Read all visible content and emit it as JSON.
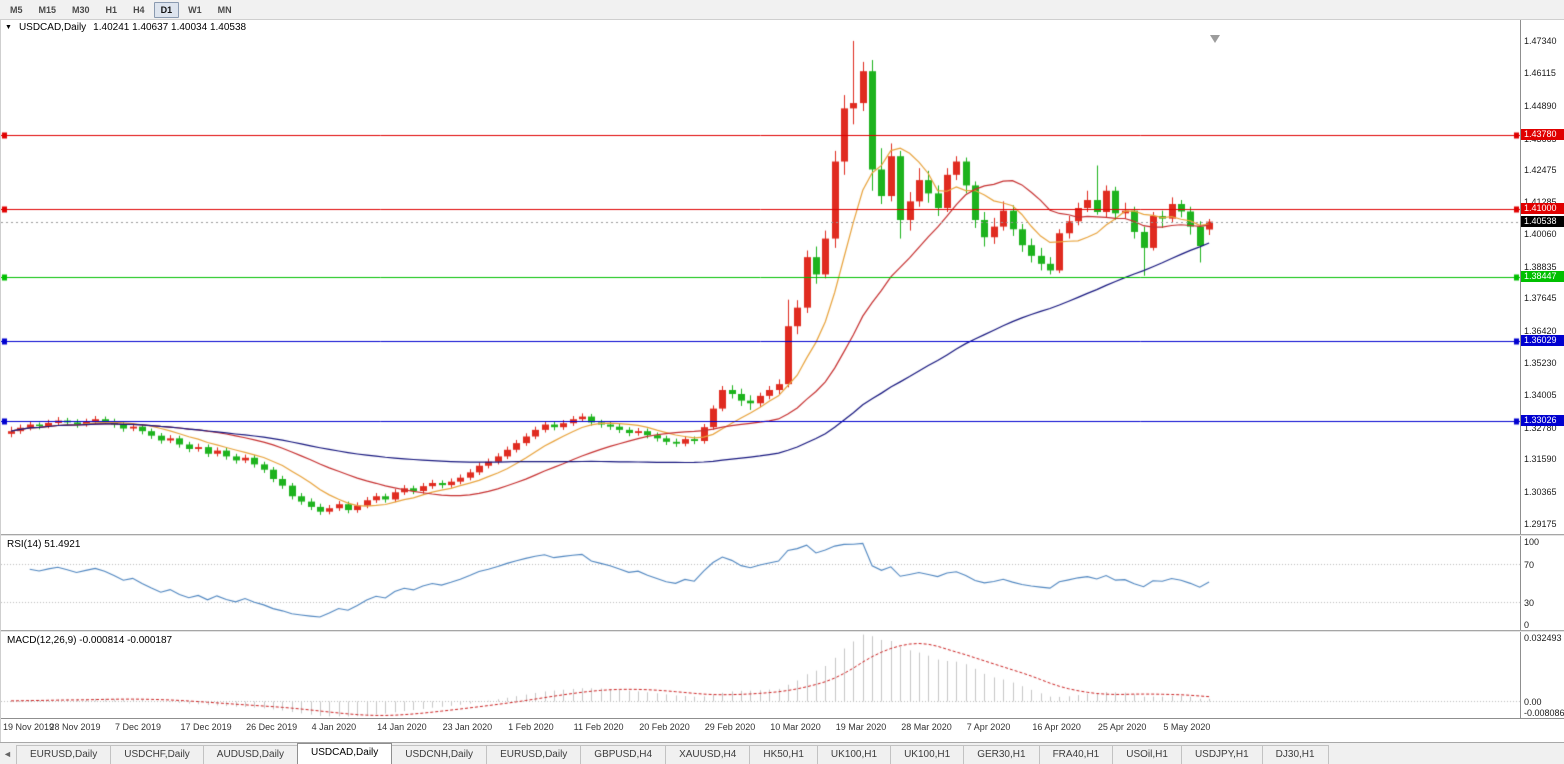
{
  "icons": {
    "dropdown": "▼",
    "tab_scroll_left": "◄"
  },
  "toolbar": {
    "timeframes": [
      "M5",
      "M15",
      "M30",
      "H1",
      "H4",
      "D1",
      "W1",
      "MN"
    ],
    "active": "D1"
  },
  "chart_header": {
    "symbol": "USDCAD,Daily",
    "ohlc": "1.40241 1.40637 1.40034 1.40538"
  },
  "price_axis": {
    "ticks": [
      1.4734,
      1.46115,
      1.4489,
      1.43665,
      1.42475,
      1.41285,
      1.4006,
      1.38835,
      1.37645,
      1.3642,
      1.3523,
      1.34005,
      1.3278,
      1.3159,
      1.30365,
      1.29175
    ]
  },
  "panes": {
    "rsi": {
      "label": "RSI(14) 51.4921",
      "levels": [
        100,
        70,
        30,
        0
      ]
    },
    "macd": {
      "label": "MACD(12,26,9) -0.000814 -0.000187",
      "axis_labels": [
        "0.032493",
        "0.00",
        "-0.008086"
      ]
    }
  },
  "tabs": {
    "items": [
      "EURUSD,Daily",
      "USDCHF,Daily",
      "AUDUSD,Daily",
      "USDCAD,Daily",
      "USDCNH,Daily",
      "EURUSD,Daily",
      "GBPUSD,H4",
      "XAUUSD,H4",
      "HK50,H1",
      "UK100,H1",
      "UK100,H1",
      "GER30,H1",
      "FRA40,H1",
      "USOil,H1",
      "USDJPY,H1",
      "DJ30,H1"
    ],
    "active_index": 3
  },
  "chart_data": {
    "type": "candlestick",
    "title": "USDCAD,Daily",
    "ylim": [
      1.2878,
      1.476
    ],
    "up_color": "#e02b20",
    "down_color": "#1db31d",
    "x_label_every": 7,
    "x_labels": [
      "19 Nov 2019",
      "28 Nov 2019",
      "7 Dec 2019",
      "17 Dec 2019",
      "26 Dec 2019",
      "4 Jan 2020",
      "14 Jan 2020",
      "23 Jan 2020",
      "1 Feb 2020",
      "11 Feb 2020",
      "20 Feb 2020",
      "29 Feb 2020",
      "10 Mar 2020",
      "19 Mar 2020",
      "28 Mar 2020",
      "7 Apr 2020",
      "16 Apr 2020",
      "25 Apr 2020",
      "5 May 2020"
    ],
    "hlines": [
      {
        "price": 1.4378,
        "color": "#e00000",
        "style": "solid"
      },
      {
        "price": 1.41,
        "color": "#e00000",
        "style": "solid"
      },
      {
        "price": 1.40538,
        "color": "#000000",
        "style": "current"
      },
      {
        "price": 1.38447,
        "color": "#00c000",
        "style": "solid"
      },
      {
        "price": 1.36029,
        "color": "#0000d0",
        "style": "solid"
      },
      {
        "price": 1.33026,
        "color": "#0000d0",
        "style": "solid"
      }
    ],
    "moving_averages": [
      {
        "period": 8,
        "color": "#e8a33c"
      },
      {
        "period": 20,
        "color": "#c62f2f"
      },
      {
        "period": 55,
        "color": "#15157e"
      }
    ],
    "subpanes": [
      {
        "type": "rsi",
        "period": 14,
        "current": 51.4921,
        "color": "#4f86c0",
        "levels": [
          100,
          70,
          30,
          0
        ]
      },
      {
        "type": "macd",
        "params": [
          12,
          26,
          9
        ],
        "current": [
          -0.000814,
          -0.000187
        ],
        "hist_color": "#c6c6c6",
        "signal_color": "#cc2222",
        "scale": [
          -0.008086,
          0.032493
        ]
      }
    ],
    "ohlc": [
      [
        1.3255,
        1.3282,
        1.3242,
        1.3265
      ],
      [
        1.3265,
        1.329,
        1.3255,
        1.3278
      ],
      [
        1.3278,
        1.3302,
        1.3268,
        1.329
      ],
      [
        1.329,
        1.3298,
        1.3272,
        1.3284
      ],
      [
        1.3284,
        1.3308,
        1.3276,
        1.3296
      ],
      [
        1.3296,
        1.3318,
        1.3288,
        1.3305
      ],
      [
        1.3305,
        1.3315,
        1.3286,
        1.3298
      ],
      [
        1.3298,
        1.331,
        1.3278,
        1.329
      ],
      [
        1.329,
        1.3312,
        1.3282,
        1.33
      ],
      [
        1.33,
        1.3322,
        1.3292,
        1.331
      ],
      [
        1.331,
        1.332,
        1.3292,
        1.3302
      ],
      [
        1.3302,
        1.3312,
        1.3278,
        1.329
      ],
      [
        1.329,
        1.33,
        1.3263,
        1.3275
      ],
      [
        1.3275,
        1.3295,
        1.3265,
        1.3282
      ],
      [
        1.3282,
        1.3292,
        1.3253,
        1.3265
      ],
      [
        1.3265,
        1.3275,
        1.3236,
        1.3248
      ],
      [
        1.3248,
        1.3258,
        1.3218,
        1.323
      ],
      [
        1.323,
        1.325,
        1.322,
        1.3238
      ],
      [
        1.3238,
        1.3248,
        1.3203,
        1.3215
      ],
      [
        1.3215,
        1.3225,
        1.3186,
        1.3198
      ],
      [
        1.3198,
        1.3218,
        1.3188,
        1.3205
      ],
      [
        1.3205,
        1.3215,
        1.3168,
        1.318
      ],
      [
        1.318,
        1.3204,
        1.317,
        1.3192
      ],
      [
        1.3192,
        1.3202,
        1.3158,
        1.317
      ],
      [
        1.317,
        1.318,
        1.3143,
        1.3155
      ],
      [
        1.3155,
        1.3177,
        1.3145,
        1.3165
      ],
      [
        1.3165,
        1.3175,
        1.3128,
        1.314
      ],
      [
        1.314,
        1.315,
        1.3108,
        1.312
      ],
      [
        1.312,
        1.313,
        1.3073,
        1.3085
      ],
      [
        1.3085,
        1.3097,
        1.3048,
        1.306
      ],
      [
        1.306,
        1.307,
        1.3008,
        1.302
      ],
      [
        1.302,
        1.3032,
        1.2988,
        1.3
      ],
      [
        1.3,
        1.3012,
        1.2968,
        1.298
      ],
      [
        1.298,
        1.2992,
        1.295,
        1.2962
      ],
      [
        1.2962,
        1.2987,
        1.2952,
        1.2975
      ],
      [
        1.2975,
        1.3002,
        1.2965,
        1.299
      ],
      [
        1.299,
        1.3,
        1.2956,
        1.2968
      ],
      [
        1.2968,
        1.2997,
        1.2958,
        1.2985
      ],
      [
        1.2985,
        1.3017,
        1.2975,
        1.3005
      ],
      [
        1.3005,
        1.3032,
        1.2995,
        1.302
      ],
      [
        1.302,
        1.303,
        1.2996,
        1.3008
      ],
      [
        1.3008,
        1.3047,
        1.2998,
        1.3035
      ],
      [
        1.3035,
        1.3062,
        1.3025,
        1.305
      ],
      [
        1.305,
        1.306,
        1.3028,
        1.304
      ],
      [
        1.304,
        1.307,
        1.303,
        1.3058
      ],
      [
        1.3058,
        1.3082,
        1.3048,
        1.307
      ],
      [
        1.307,
        1.308,
        1.305,
        1.3062
      ],
      [
        1.3062,
        1.3087,
        1.3052,
        1.3075
      ],
      [
        1.3075,
        1.3102,
        1.3065,
        1.309
      ],
      [
        1.309,
        1.3122,
        1.308,
        1.311
      ],
      [
        1.311,
        1.3147,
        1.31,
        1.3135
      ],
      [
        1.3135,
        1.3162,
        1.3125,
        1.315
      ],
      [
        1.315,
        1.3182,
        1.314,
        1.317
      ],
      [
        1.317,
        1.3207,
        1.316,
        1.3195
      ],
      [
        1.3195,
        1.3232,
        1.3185,
        1.322
      ],
      [
        1.322,
        1.3257,
        1.321,
        1.3245
      ],
      [
        1.3245,
        1.3282,
        1.3235,
        1.327
      ],
      [
        1.327,
        1.3302,
        1.326,
        1.329
      ],
      [
        1.329,
        1.33,
        1.3268,
        1.328
      ],
      [
        1.328,
        1.3307,
        1.327,
        1.3295
      ],
      [
        1.3295,
        1.3322,
        1.3285,
        1.331
      ],
      [
        1.331,
        1.3332,
        1.33,
        1.332
      ],
      [
        1.332,
        1.333,
        1.3286,
        1.3298
      ],
      [
        1.3298,
        1.3308,
        1.3278,
        1.329
      ],
      [
        1.329,
        1.33,
        1.327,
        1.3282
      ],
      [
        1.3282,
        1.3292,
        1.3258,
        1.327
      ],
      [
        1.327,
        1.328,
        1.3246,
        1.3258
      ],
      [
        1.3258,
        1.3277,
        1.3248,
        1.3265
      ],
      [
        1.3265,
        1.3275,
        1.3238,
        1.325
      ],
      [
        1.325,
        1.326,
        1.3226,
        1.3238
      ],
      [
        1.3238,
        1.3248,
        1.3213,
        1.3225
      ],
      [
        1.3225,
        1.3237,
        1.3206,
        1.3218
      ],
      [
        1.3218,
        1.3247,
        1.3208,
        1.3235
      ],
      [
        1.3235,
        1.3245,
        1.3216,
        1.3228
      ],
      [
        1.3228,
        1.3292,
        1.3218,
        1.328
      ],
      [
        1.328,
        1.3362,
        1.327,
        1.335
      ],
      [
        1.335,
        1.3435,
        1.334,
        1.342
      ],
      [
        1.342,
        1.3438,
        1.3388,
        1.3405
      ],
      [
        1.3405,
        1.3425,
        1.336,
        1.338
      ],
      [
        1.338,
        1.34,
        1.3345,
        1.337
      ],
      [
        1.337,
        1.341,
        1.3355,
        1.3398
      ],
      [
        1.3398,
        1.3435,
        1.3385,
        1.342
      ],
      [
        1.342,
        1.346,
        1.3405,
        1.3442
      ],
      [
        1.3442,
        1.376,
        1.343,
        1.366
      ],
      [
        1.366,
        1.3758,
        1.363,
        1.373
      ],
      [
        1.373,
        1.3945,
        1.371,
        1.392
      ],
      [
        1.392,
        1.396,
        1.382,
        1.3855
      ],
      [
        1.3855,
        1.402,
        1.384,
        1.399
      ],
      [
        1.399,
        1.432,
        1.3955,
        1.428
      ],
      [
        1.428,
        1.453,
        1.423,
        1.448
      ],
      [
        1.448,
        1.4734,
        1.442,
        1.45
      ],
      [
        1.45,
        1.4655,
        1.447,
        1.462
      ],
      [
        1.462,
        1.4662,
        1.417,
        1.425
      ],
      [
        1.425,
        1.433,
        1.412,
        1.415
      ],
      [
        1.415,
        1.4348,
        1.413,
        1.43
      ],
      [
        1.43,
        1.432,
        1.399,
        1.406
      ],
      [
        1.406,
        1.4165,
        1.402,
        1.413
      ],
      [
        1.413,
        1.4255,
        1.411,
        1.421
      ],
      [
        1.421,
        1.4245,
        1.4125,
        1.416
      ],
      [
        1.416,
        1.419,
        1.4075,
        1.4105
      ],
      [
        1.4105,
        1.4255,
        1.409,
        1.423
      ],
      [
        1.423,
        1.43,
        1.421,
        1.428
      ],
      [
        1.428,
        1.4295,
        1.416,
        1.419
      ],
      [
        1.419,
        1.4205,
        1.403,
        1.406
      ],
      [
        1.406,
        1.409,
        1.396,
        1.3995
      ],
      [
        1.3995,
        1.4068,
        1.397,
        1.4035
      ],
      [
        1.4035,
        1.413,
        1.402,
        1.4095
      ],
      [
        1.4095,
        1.4115,
        1.4,
        1.4025
      ],
      [
        1.4025,
        1.4045,
        1.394,
        1.3965
      ],
      [
        1.3965,
        1.399,
        1.39,
        1.3925
      ],
      [
        1.3925,
        1.3955,
        1.387,
        1.3895
      ],
      [
        1.3895,
        1.392,
        1.3855,
        1.387
      ],
      [
        1.387,
        1.4025,
        1.386,
        1.401
      ],
      [
        1.401,
        1.4075,
        1.399,
        1.4055
      ],
      [
        1.4055,
        1.4125,
        1.404,
        1.4105
      ],
      [
        1.4105,
        1.417,
        1.409,
        1.4135
      ],
      [
        1.4135,
        1.4265,
        1.408,
        1.409
      ],
      [
        1.409,
        1.419,
        1.407,
        1.417
      ],
      [
        1.417,
        1.4185,
        1.406,
        1.4085
      ],
      [
        1.4085,
        1.4125,
        1.4065,
        1.4095
      ],
      [
        1.4095,
        1.411,
        1.399,
        1.4015
      ],
      [
        1.4015,
        1.4035,
        1.385,
        1.3955
      ],
      [
        1.3955,
        1.409,
        1.3945,
        1.4075
      ],
      [
        1.4075,
        1.4095,
        1.403,
        1.4065
      ],
      [
        1.4065,
        1.4145,
        1.405,
        1.412
      ],
      [
        1.412,
        1.4135,
        1.407,
        1.4092
      ],
      [
        1.4092,
        1.411,
        1.4005,
        1.4035
      ],
      [
        1.4035,
        1.4055,
        1.39,
        1.3962
      ],
      [
        1.40241,
        1.40637,
        1.40034,
        1.40538
      ]
    ]
  }
}
